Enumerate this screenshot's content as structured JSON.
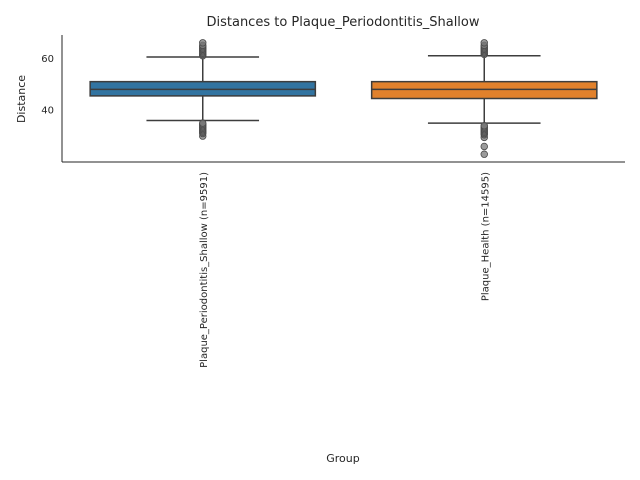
{
  "chart_data": {
    "type": "box",
    "title": "Distances to Plaque_Periodontitis_Shallow",
    "xlabel": "Group",
    "ylabel": "Distance",
    "ylim": [
      20,
      69
    ],
    "yticks": [
      40,
      60
    ],
    "grid": false,
    "categories": [
      "Plaque_Periodontitis_Shallow (n=9591)",
      "Plaque_Health (n=14595)"
    ],
    "boxes": [
      {
        "category": "Plaque_Periodontitis_Shallow (n=9591)",
        "color": "#3274a1",
        "whisker_low": 36,
        "q1": 45.5,
        "median": 48,
        "q3": 51,
        "whisker_high": 60.5,
        "outliers": [
          30,
          31,
          31.5,
          32,
          32.5,
          33,
          33.5,
          34,
          34.5,
          35,
          61,
          61.5,
          62,
          62.5,
          63,
          63.5,
          64,
          64.5,
          65,
          66
        ]
      },
      {
        "category": "Plaque_Health (n=14595)",
        "color": "#e1812c",
        "whisker_low": 35,
        "q1": 44.5,
        "median": 48,
        "q3": 51,
        "whisker_high": 61,
        "outliers": [
          23,
          26,
          29.5,
          30.5,
          31,
          31.5,
          32,
          32.5,
          33,
          33.5,
          34,
          61.5,
          62,
          62.5,
          63,
          63.5,
          64,
          64.5,
          65,
          66
        ]
      }
    ]
  }
}
